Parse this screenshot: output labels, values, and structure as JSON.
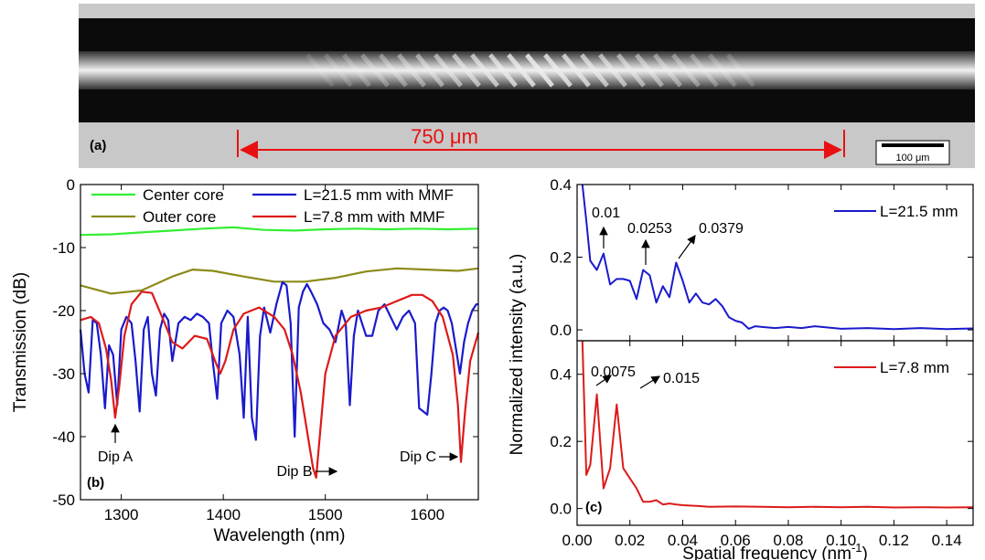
{
  "panel_a": {
    "label": "(a)",
    "length_label": "750 μm",
    "scale_bar_label": "100 μm"
  },
  "chart_data": [
    {
      "panel": "(b)",
      "type": "line",
      "xlabel": "Wavelength (nm)",
      "ylabel": "Transmission (dB)",
      "xlim": [
        1260,
        1650
      ],
      "ylim": [
        -50,
        0
      ],
      "xticks": [
        1300,
        1400,
        1500,
        1600
      ],
      "yticks": [
        0,
        -10,
        -20,
        -30,
        -40,
        -50
      ],
      "legend": "top",
      "series": [
        {
          "name": "Center core",
          "color": "#33ee33",
          "x": [
            1260,
            1290,
            1320,
            1350,
            1380,
            1410,
            1440,
            1470,
            1500,
            1530,
            1560,
            1590,
            1620,
            1650
          ],
          "y": [
            -8,
            -7.9,
            -7.6,
            -7.3,
            -7,
            -6.8,
            -7.2,
            -7.3,
            -7.1,
            -7,
            -7.1,
            -7,
            -7.1,
            -7
          ]
        },
        {
          "name": "Outer core",
          "color": "#8b8b1a",
          "x": [
            1260,
            1290,
            1320,
            1350,
            1370,
            1390,
            1420,
            1450,
            1480,
            1510,
            1540,
            1570,
            1600,
            1630,
            1650
          ],
          "y": [
            -16,
            -17.3,
            -16.8,
            -14.6,
            -13.5,
            -13.7,
            -14.6,
            -15.4,
            -15.4,
            -14.8,
            -13.8,
            -13.3,
            -13.5,
            -13.7,
            -13.3
          ]
        },
        {
          "name": "L=21.5 mm with MMF",
          "color": "#1a1acc",
          "x": [
            1260,
            1264,
            1268,
            1272,
            1276,
            1280,
            1284,
            1288,
            1292,
            1296,
            1300,
            1305,
            1310,
            1314,
            1318,
            1322,
            1326,
            1330,
            1334,
            1338,
            1342,
            1346,
            1350,
            1356,
            1362,
            1368,
            1374,
            1380,
            1386,
            1390,
            1394,
            1398,
            1404,
            1410,
            1416,
            1420,
            1424,
            1428,
            1432,
            1436,
            1440,
            1446,
            1452,
            1458,
            1462,
            1466,
            1470,
            1474,
            1478,
            1482,
            1486,
            1492,
            1498,
            1504,
            1510,
            1516,
            1520,
            1524,
            1528,
            1532,
            1536,
            1540,
            1546,
            1552,
            1558,
            1564,
            1570,
            1576,
            1582,
            1588,
            1592,
            1596,
            1600,
            1604,
            1608,
            1612,
            1616,
            1620,
            1624,
            1628,
            1632,
            1636,
            1640,
            1644,
            1648,
            1650
          ],
          "y": [
            -23,
            -30,
            -33,
            -21.5,
            -22,
            -27,
            -35.5,
            -25.5,
            -27,
            -35,
            -23,
            -21,
            -22,
            -28,
            -36,
            -23,
            -21,
            -30,
            -33.5,
            -23,
            -20.5,
            -21.5,
            -28,
            -22,
            -21,
            -21.5,
            -20.5,
            -21,
            -22,
            -28.5,
            -34,
            -22,
            -20,
            -21,
            -27,
            -37,
            -21,
            -37,
            -40.5,
            -24,
            -19.5,
            -23.5,
            -19,
            -15.5,
            -16,
            -22,
            -40,
            -19.5,
            -17,
            -15.8,
            -17,
            -19,
            -22,
            -23,
            -25,
            -20,
            -22,
            -35,
            -24,
            -20,
            -22,
            -24,
            -24,
            -20,
            -19,
            -21,
            -23,
            -21,
            -20,
            -22,
            -35.5,
            -36,
            -36.5,
            -30,
            -22,
            -20,
            -19.5,
            -20,
            -22,
            -26,
            -30,
            -25,
            -22,
            -20,
            -19,
            -19
          ]
        },
        {
          "name": "L=7.8 mm with MMF",
          "color": "#dd1a1a",
          "x": [
            1260,
            1270,
            1278,
            1285,
            1290,
            1294,
            1298,
            1303,
            1310,
            1320,
            1330,
            1340,
            1350,
            1360,
            1372,
            1384,
            1392,
            1397,
            1402,
            1410,
            1420,
            1435,
            1450,
            1460,
            1468,
            1476,
            1482,
            1488,
            1491,
            1494,
            1500,
            1510,
            1525,
            1540,
            1555,
            1570,
            1585,
            1595,
            1605,
            1615,
            1625,
            1630,
            1633,
            1637,
            1642,
            1650
          ],
          "y": [
            -21.5,
            -21,
            -22,
            -26,
            -31,
            -37,
            -32,
            -24,
            -19,
            -17,
            -17.2,
            -21,
            -25,
            -26,
            -24,
            -24.5,
            -28,
            -30,
            -28,
            -23,
            -20.5,
            -19.5,
            -21,
            -23,
            -27,
            -33,
            -39,
            -45,
            -46.5,
            -41,
            -30,
            -24,
            -21,
            -20,
            -19.5,
            -18.5,
            -17.5,
            -17.5,
            -18.5,
            -21,
            -27,
            -35,
            -44,
            -36,
            -28,
            -23.5
          ]
        }
      ],
      "annotations": [
        "Dip A",
        "Dip B",
        "Dip C"
      ]
    },
    {
      "panel": "(c)",
      "type": "line",
      "xlabel": "Spatial frequency (nm",
      "xlabel_sup": "-1",
      "xlabel_end": ")",
      "ylabel": "Normalized intensity (a.u.)",
      "xlim": [
        0,
        0.15
      ],
      "xticks": [
        0.0,
        0.02,
        0.04,
        0.06,
        0.08,
        0.1,
        0.12,
        0.14
      ],
      "subplots": [
        {
          "series_name": "L=21.5 mm",
          "color": "#1a1acc",
          "ylim": [
            -0.03,
            0.4
          ],
          "yticks": [
            0.0,
            0.2,
            0.4
          ],
          "x": [
            0.002,
            0.0035,
            0.005,
            0.0075,
            0.01,
            0.0125,
            0.015,
            0.0175,
            0.02,
            0.0225,
            0.025,
            0.0275,
            0.03,
            0.0325,
            0.035,
            0.0375,
            0.04,
            0.0425,
            0.045,
            0.0475,
            0.05,
            0.0525,
            0.055,
            0.0575,
            0.06,
            0.0625,
            0.065,
            0.0675,
            0.07,
            0.075,
            0.08,
            0.085,
            0.09,
            0.1,
            0.11,
            0.12,
            0.13,
            0.14,
            0.15
          ],
          "y": [
            0.4,
            0.3,
            0.19,
            0.165,
            0.21,
            0.125,
            0.14,
            0.14,
            0.135,
            0.085,
            0.165,
            0.15,
            0.075,
            0.12,
            0.09,
            0.185,
            0.135,
            0.075,
            0.1,
            0.075,
            0.07,
            0.085,
            0.065,
            0.035,
            0.025,
            0.02,
            0.003,
            0.01,
            0.008,
            0.005,
            0.008,
            0.005,
            0.01,
            0.003,
            0.005,
            0.002,
            0.005,
            0.002,
            0.004
          ]
        },
        {
          "series_name": "L=7.8 mm",
          "color": "#dd1a1a",
          "ylim": [
            -0.05,
            0.5
          ],
          "yticks": [
            0.0,
            0.2,
            0.4
          ],
          "x": [
            0.002,
            0.0035,
            0.005,
            0.0075,
            0.01,
            0.0125,
            0.015,
            0.0175,
            0.02,
            0.0225,
            0.025,
            0.0275,
            0.03,
            0.0325,
            0.035,
            0.0375,
            0.04,
            0.045,
            0.05,
            0.06,
            0.07,
            0.08,
            0.09,
            0.1,
            0.11,
            0.12,
            0.13,
            0.14,
            0.15
          ],
          "y": [
            0.5,
            0.1,
            0.13,
            0.34,
            0.06,
            0.12,
            0.31,
            0.12,
            0.09,
            0.06,
            0.02,
            0.02,
            0.025,
            0.012,
            0.015,
            0.012,
            0.01,
            0.008,
            0.005,
            0.006,
            0.005,
            0.004,
            0.005,
            0.004,
            0.005,
            0.003,
            0.004,
            0.003,
            0.004
          ]
        }
      ],
      "annotations": [
        "0.01",
        "0.0253",
        "0.0379",
        "0.0075",
        "0.015"
      ]
    }
  ]
}
